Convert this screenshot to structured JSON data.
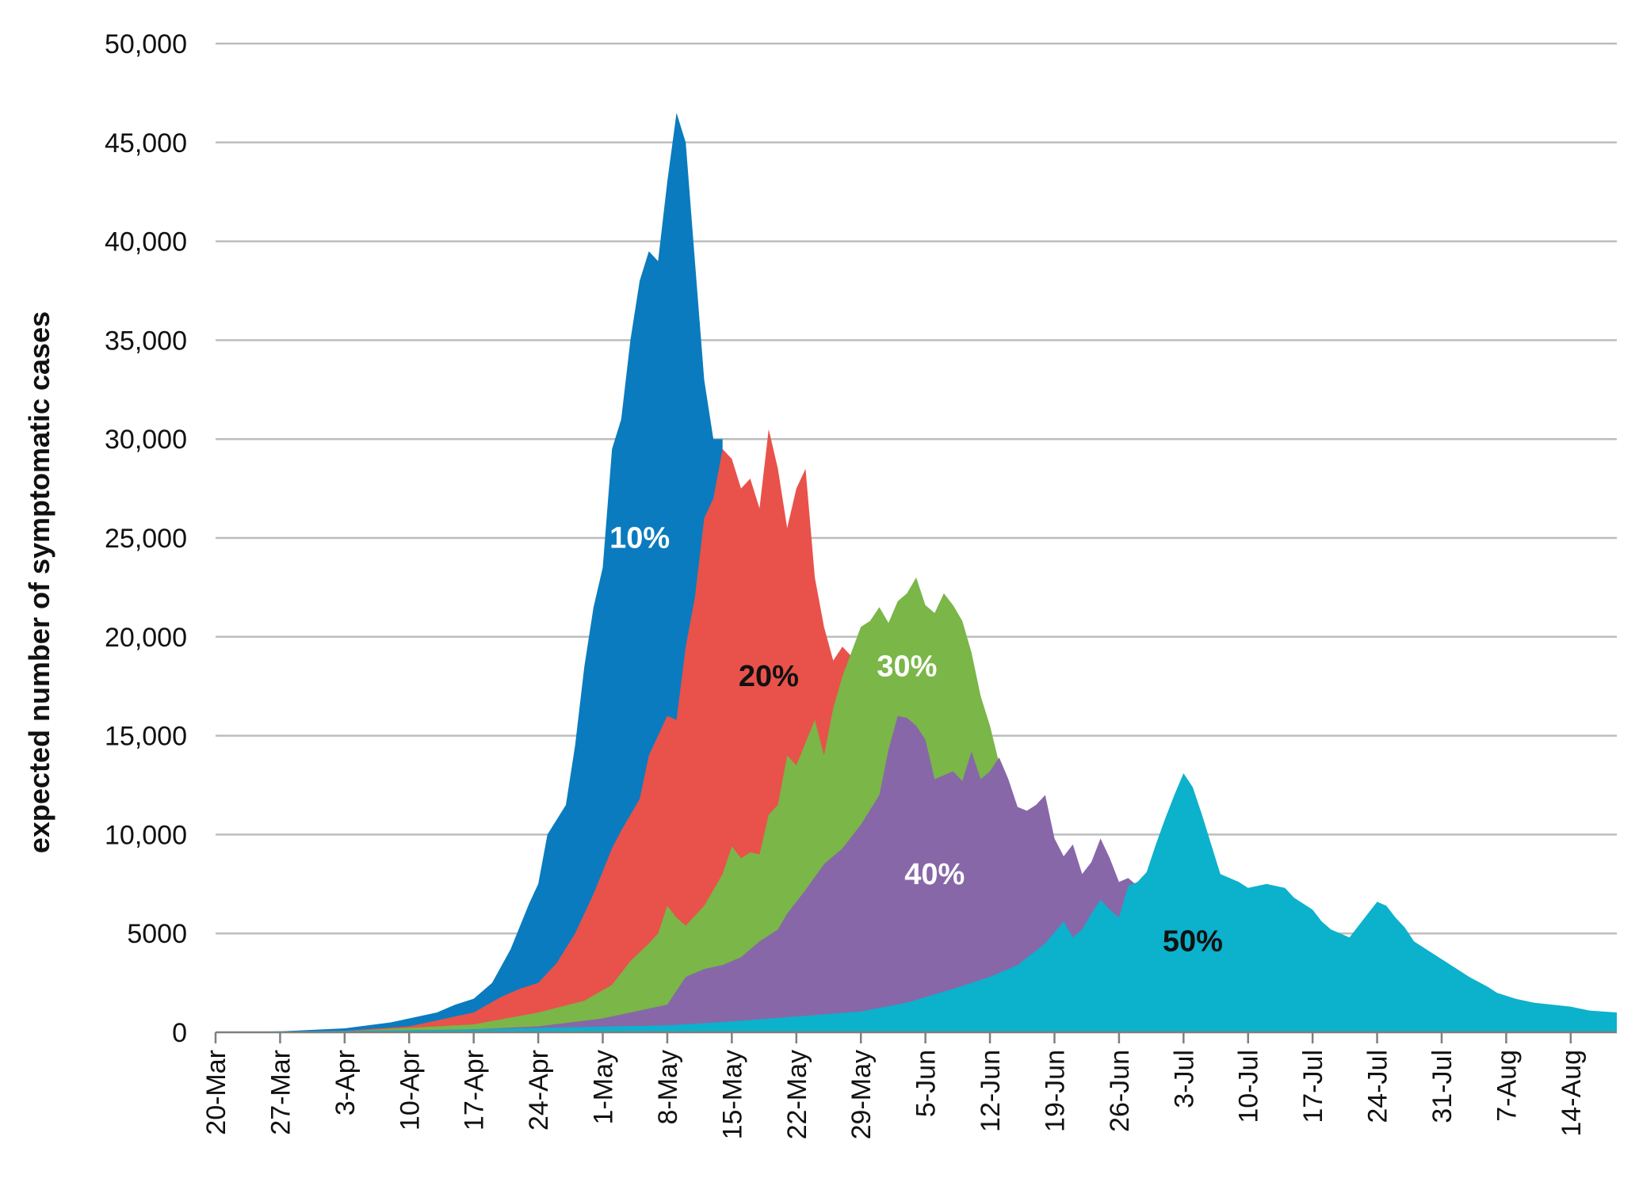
{
  "chart_data": {
    "type": "area",
    "title": "",
    "xlabel": "",
    "ylabel": "expected number of symptomatic cases",
    "ylim": [
      0,
      50000
    ],
    "yticks": [
      0,
      5000,
      10000,
      15000,
      20000,
      25000,
      30000,
      35000,
      40000,
      45000,
      50000
    ],
    "ytick_labels": [
      "0",
      "5000",
      "10,000",
      "15,000",
      "20,000",
      "25,000",
      "30,000",
      "35,000",
      "40,000",
      "45,000",
      "50,000"
    ],
    "xlim": [
      "2020-03-20",
      "2020-08-19"
    ],
    "xtick_labels": [
      "20-Mar",
      "27-Mar",
      "3-Apr",
      "10-Apr",
      "17-Apr",
      "24-Apr",
      "1-May",
      "8-May",
      "15-May",
      "22-May",
      "29-May",
      "5-Jun",
      "12-Jun",
      "19-Jun",
      "26-Jun",
      "3-Jul",
      "10-Jul",
      "17-Jul",
      "24-Jul",
      "31-Jul",
      "7-Aug",
      "14-Aug"
    ],
    "xticks": [
      "2020-03-20",
      "2020-03-27",
      "2020-04-03",
      "2020-04-10",
      "2020-04-17",
      "2020-04-24",
      "2020-05-01",
      "2020-05-08",
      "2020-05-15",
      "2020-05-22",
      "2020-05-29",
      "2020-06-05",
      "2020-06-12",
      "2020-06-19",
      "2020-06-26",
      "2020-07-03",
      "2020-07-10",
      "2020-07-17",
      "2020-07-24",
      "2020-07-31",
      "2020-08-07",
      "2020-08-14"
    ],
    "grid": true,
    "series": [
      {
        "name": "10%",
        "color": "#0a7bbf",
        "label_color": "#ffffff",
        "label_pos": [
          "2020-05-05",
          24500
        ],
        "x": [
          "2020-03-20",
          "2020-03-27",
          "2020-04-03",
          "2020-04-08",
          "2020-04-10",
          "2020-04-13",
          "2020-04-15",
          "2020-04-17",
          "2020-04-19",
          "2020-04-21",
          "2020-04-23",
          "2020-04-24",
          "2020-04-25",
          "2020-04-27",
          "2020-04-28",
          "2020-04-29",
          "2020-04-30",
          "2020-05-01",
          "2020-05-02",
          "2020-05-03",
          "2020-05-04",
          "2020-05-05",
          "2020-05-06",
          "2020-05-07",
          "2020-05-08",
          "2020-05-09",
          "2020-05-10",
          "2020-05-11",
          "2020-05-12",
          "2020-05-13",
          "2020-05-14"
        ],
        "y": [
          0,
          50,
          200,
          500,
          700,
          1000,
          1400,
          1700,
          2500,
          4200,
          6500,
          7500,
          10000,
          11500,
          14500,
          18500,
          21500,
          23500,
          29500,
          31000,
          35000,
          38000,
          39500,
          39000,
          43000,
          46500,
          45000,
          39000,
          33000,
          30000,
          30000
        ]
      },
      {
        "name": "20%",
        "color": "#e8524a",
        "label_color": "#111111",
        "label_pos": [
          "2020-05-19",
          17500
        ],
        "x": [
          "2020-03-20",
          "2020-03-27",
          "2020-04-03",
          "2020-04-10",
          "2020-04-17",
          "2020-04-20",
          "2020-04-22",
          "2020-04-24",
          "2020-04-26",
          "2020-04-28",
          "2020-04-30",
          "2020-05-02",
          "2020-05-03",
          "2020-05-05",
          "2020-05-06",
          "2020-05-07",
          "2020-05-08",
          "2020-05-09",
          "2020-05-10",
          "2020-05-11",
          "2020-05-12",
          "2020-05-13",
          "2020-05-14",
          "2020-05-15",
          "2020-05-16",
          "2020-05-17",
          "2020-05-18",
          "2020-05-19",
          "2020-05-20",
          "2020-05-21",
          "2020-05-22",
          "2020-05-23",
          "2020-05-24",
          "2020-05-25",
          "2020-05-26",
          "2020-05-27",
          "2020-05-28",
          "2020-05-29"
        ],
        "y": [
          0,
          20,
          80,
          300,
          1000,
          1800,
          2200,
          2500,
          3500,
          5000,
          7000,
          9300,
          10200,
          11800,
          14000,
          15000,
          16000,
          15800,
          19500,
          22000,
          26000,
          27000,
          29500,
          29000,
          27500,
          28000,
          26500,
          30500,
          28500,
          25500,
          27500,
          28500,
          23000,
          20500,
          18800,
          19500,
          19000,
          17000
        ]
      },
      {
        "name": "30%",
        "color": "#7ab648",
        "label_color": "#ffffff",
        "label_pos": [
          "2020-06-03",
          18000
        ],
        "x": [
          "2020-03-20",
          "2020-04-03",
          "2020-04-17",
          "2020-04-24",
          "2020-04-29",
          "2020-05-02",
          "2020-05-04",
          "2020-05-06",
          "2020-05-07",
          "2020-05-08",
          "2020-05-09",
          "2020-05-10",
          "2020-05-12",
          "2020-05-14",
          "2020-05-15",
          "2020-05-16",
          "2020-05-17",
          "2020-05-18",
          "2020-05-19",
          "2020-05-20",
          "2020-05-21",
          "2020-05-22",
          "2020-05-24",
          "2020-05-25",
          "2020-05-26",
          "2020-05-27",
          "2020-05-29",
          "2020-05-30",
          "2020-05-31",
          "2020-06-01",
          "2020-06-02",
          "2020-06-03",
          "2020-06-04",
          "2020-06-05",
          "2020-06-06",
          "2020-06-07",
          "2020-06-08",
          "2020-06-09",
          "2020-06-10",
          "2020-06-11",
          "2020-06-12",
          "2020-06-13"
        ],
        "y": [
          0,
          50,
          400,
          1000,
          1600,
          2400,
          3600,
          4500,
          5000,
          6400,
          5800,
          5400,
          6400,
          8000,
          9400,
          8800,
          9100,
          9000,
          11000,
          11500,
          14000,
          13500,
          15800,
          14000,
          16400,
          18000,
          20500,
          20800,
          21500,
          20700,
          21800,
          22200,
          23000,
          21600,
          21200,
          22200,
          21600,
          20800,
          19200,
          17000,
          15500,
          13600
        ]
      },
      {
        "name": "40%",
        "color": "#8767a8",
        "label_color": "#ffffff",
        "label_pos": [
          "2020-06-06",
          7500
        ],
        "x": [
          "2020-03-20",
          "2020-04-03",
          "2020-04-17",
          "2020-04-24",
          "2020-05-01",
          "2020-05-08",
          "2020-05-10",
          "2020-05-12",
          "2020-05-14",
          "2020-05-16",
          "2020-05-18",
          "2020-05-20",
          "2020-05-21",
          "2020-05-23",
          "2020-05-25",
          "2020-05-27",
          "2020-05-29",
          "2020-05-31",
          "2020-06-01",
          "2020-06-02",
          "2020-06-03",
          "2020-06-04",
          "2020-06-05",
          "2020-06-06",
          "2020-06-07",
          "2020-06-08",
          "2020-06-09",
          "2020-06-10",
          "2020-06-11",
          "2020-06-12",
          "2020-06-13",
          "2020-06-14",
          "2020-06-15",
          "2020-06-16",
          "2020-06-17",
          "2020-06-18",
          "2020-06-19",
          "2020-06-20",
          "2020-06-21",
          "2020-06-22",
          "2020-06-23",
          "2020-06-24",
          "2020-06-25",
          "2020-06-26",
          "2020-06-27",
          "2020-06-28",
          "2020-06-29"
        ],
        "y": [
          0,
          30,
          150,
          300,
          700,
          1400,
          2800,
          3200,
          3400,
          3800,
          4600,
          5200,
          6000,
          7200,
          8500,
          9300,
          10500,
          12000,
          14300,
          16000,
          15900,
          15500,
          14800,
          12800,
          13000,
          13200,
          12700,
          14200,
          12800,
          13200,
          13900,
          12800,
          11400,
          11200,
          11500,
          12000,
          9800,
          8900,
          9500,
          8000,
          8600,
          9800,
          8800,
          7600,
          7800,
          7400,
          6400
        ]
      },
      {
        "name": "50%",
        "color": "#0cb1cc",
        "label_color": "#111111",
        "label_pos": [
          "2020-07-04",
          4100
        ],
        "x": [
          "2020-03-20",
          "2020-04-17",
          "2020-05-08",
          "2020-05-15",
          "2020-05-22",
          "2020-05-29",
          "2020-06-03",
          "2020-06-08",
          "2020-06-12",
          "2020-06-15",
          "2020-06-18",
          "2020-06-20",
          "2020-06-21",
          "2020-06-22",
          "2020-06-23",
          "2020-06-24",
          "2020-06-25",
          "2020-06-26",
          "2020-06-27",
          "2020-06-28",
          "2020-06-29",
          "2020-06-30",
          "2020-07-01",
          "2020-07-02",
          "2020-07-03",
          "2020-07-04",
          "2020-07-05",
          "2020-07-06",
          "2020-07-07",
          "2020-07-08",
          "2020-07-09",
          "2020-07-10",
          "2020-07-11",
          "2020-07-12",
          "2020-07-14",
          "2020-07-15",
          "2020-07-17",
          "2020-07-18",
          "2020-07-19",
          "2020-07-21",
          "2020-07-23",
          "2020-07-24",
          "2020-07-25",
          "2020-07-26",
          "2020-07-27",
          "2020-07-28",
          "2020-07-30",
          "2020-08-01",
          "2020-08-03",
          "2020-08-05",
          "2020-08-06",
          "2020-08-08",
          "2020-08-10",
          "2020-08-12",
          "2020-08-14",
          "2020-08-16",
          "2020-08-19"
        ],
        "y": [
          0,
          150,
          350,
          550,
          800,
          1050,
          1500,
          2200,
          2800,
          3400,
          4500,
          5600,
          4800,
          5200,
          6000,
          6700,
          6200,
          5800,
          7400,
          7600,
          8100,
          9500,
          10800,
          12000,
          13100,
          12400,
          11000,
          9500,
          8000,
          7800,
          7600,
          7300,
          7400,
          7500,
          7300,
          6800,
          6200,
          5600,
          5200,
          4800,
          6000,
          6600,
          6400,
          5800,
          5300,
          4600,
          4000,
          3400,
          2800,
          2300,
          2000,
          1700,
          1500,
          1400,
          1300,
          1100,
          1000
        ]
      }
    ]
  }
}
